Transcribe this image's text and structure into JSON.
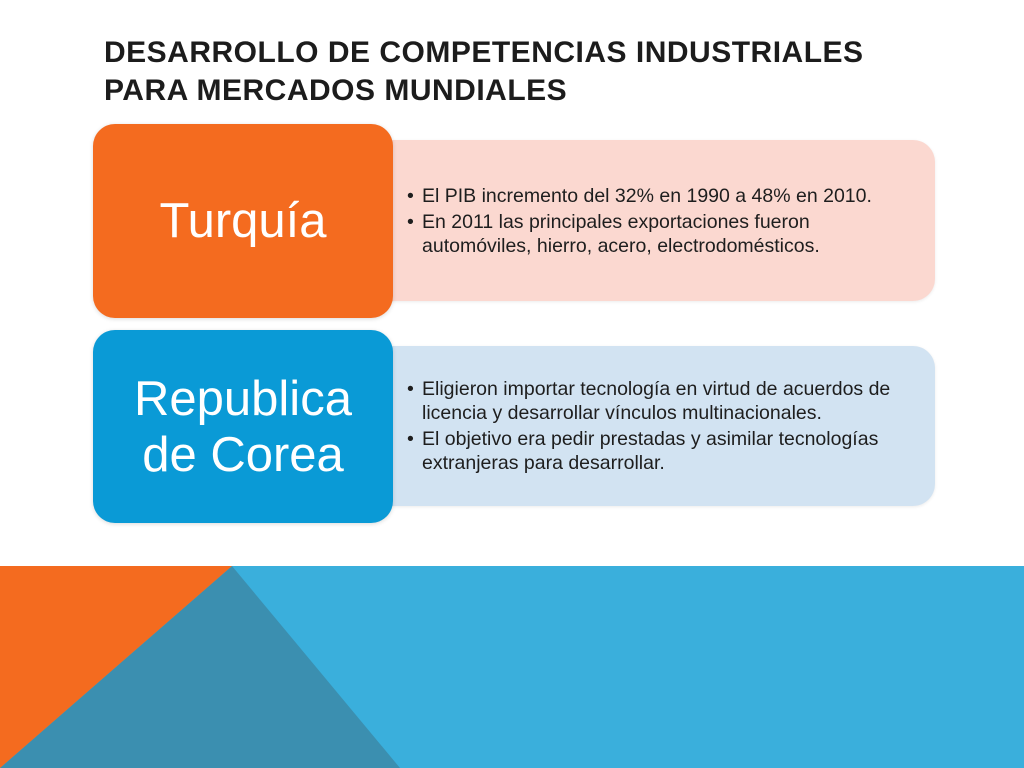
{
  "slide": {
    "title_lines": [
      "DESARROLLO DE COMPETENCIAS INDUSTRIALES",
      "PARA MERCADOS MUNDIALES"
    ],
    "colors": {
      "orange": "#f46b1f",
      "blue": "#0a9ad6",
      "light_orange": "#fbd8d0",
      "light_blue": "#d2e3f2",
      "band_blue": "#3aafdc",
      "band_dark_blue": "#3b8fb0"
    }
  },
  "rows": [
    {
      "label_lines": [
        "Turquía"
      ],
      "bullets": [
        "El PIB incremento del 32% en 1990 a 48% en 2010.",
        "En 2011 las principales exportaciones fueron automóviles, hierro, acero, electrodomésticos."
      ]
    },
    {
      "label_lines": [
        "Republica",
        "de Corea"
      ],
      "bullets": [
        "Eligieron importar tecnología en virtud de acuerdos de licencia y desarrollar vínculos multinacionales.",
        "El objetivo era pedir prestadas y asimilar tecnologías extranjeras para desarrollar."
      ]
    }
  ]
}
